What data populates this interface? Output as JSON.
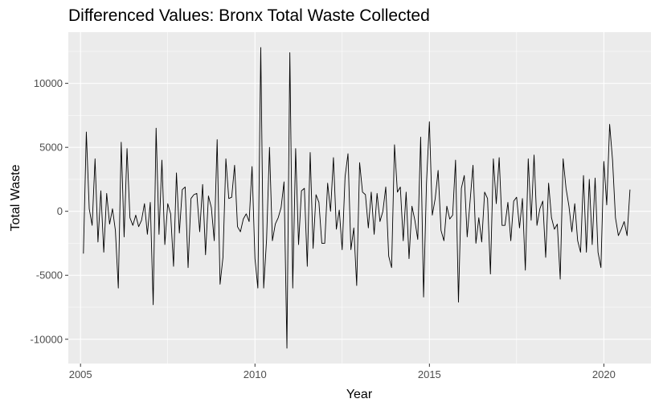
{
  "chart_data": {
    "type": "line",
    "title": "Differenced Values: Bronx Total Waste Collected",
    "xlabel": "Year",
    "ylabel": "Total Waste",
    "xlim": [
      2004.65,
      2021.35
    ],
    "ylim": [
      -11900,
      14000
    ],
    "x_ticks": [
      2005,
      2010,
      2015,
      2020
    ],
    "y_ticks": [
      -10000,
      -5000,
      0,
      5000,
      10000
    ],
    "x_tick_labels": [
      "2005",
      "2010",
      "2015",
      "2020"
    ],
    "y_tick_labels": [
      "-10000",
      "-5000",
      "0",
      "5000",
      "10000"
    ],
    "grid": true,
    "background": "#ebebeb",
    "grid_major_color": "#ffffff",
    "line_color": "#000000",
    "series": [
      {
        "x_start": 2005.083,
        "x_step": 0.08333,
        "values": [
          -3300,
          6200,
          200,
          -1100,
          4100,
          -2400,
          1600,
          -3200,
          1400,
          -1000,
          200,
          -1500,
          -6000,
          5400,
          -2000,
          4900,
          -500,
          -1100,
          -300,
          -1200,
          -700,
          600,
          -1800,
          700,
          -7300,
          6500,
          -1800,
          4000,
          -2600,
          600,
          -200,
          -4300,
          3000,
          -1700,
          1700,
          1900,
          -4400,
          1000,
          1300,
          1400,
          -1600,
          2100,
          -3400,
          1200,
          300,
          -2300,
          5600,
          -5700,
          -3600,
          4100,
          1000,
          1100,
          3600,
          -1200,
          -1600,
          -600,
          -200,
          -800,
          3500,
          -3700,
          -6000,
          12800,
          -6000,
          -2200,
          5000,
          -2300,
          -1000,
          -500,
          300,
          2300,
          -10700,
          12400,
          -6000,
          4900,
          -2600,
          1600,
          1800,
          -4300,
          4600,
          -2900,
          1300,
          700,
          -2500,
          -2500,
          2200,
          0,
          4200,
          -1400,
          100,
          -3000,
          2700,
          4500,
          -3000,
          -1300,
          -5800,
          3800,
          1500,
          1300,
          -1300,
          1500,
          -1800,
          1400,
          -800,
          0,
          1900,
          -3500,
          -4400,
          5200,
          1500,
          1900,
          -2300,
          1500,
          -3700,
          400,
          -700,
          -2200,
          5800,
          -6700,
          2200,
          7000,
          -300,
          1000,
          3200,
          -1500,
          -2300,
          400,
          -600,
          -300,
          4000,
          -7100,
          1800,
          2800,
          -2000,
          800,
          3600,
          -2500,
          -500,
          -2400,
          1500,
          1000,
          -4900,
          4100,
          600,
          4200,
          -1100,
          -1100,
          700,
          -2300,
          800,
          1100,
          -1300,
          1000,
          -4600,
          4100,
          -700,
          4400,
          -1100,
          200,
          800,
          -3600,
          2200,
          -500,
          -1400,
          -1000,
          -5300,
          4100,
          1800,
          400,
          -1600,
          600,
          -2300,
          -3200,
          2800,
          -3200,
          2500,
          -2600,
          2600,
          -3200,
          -4400,
          3900,
          500,
          6800,
          4000,
          -500,
          -1900,
          -1400,
          -800,
          -1900,
          1700
        ]
      }
    ]
  }
}
